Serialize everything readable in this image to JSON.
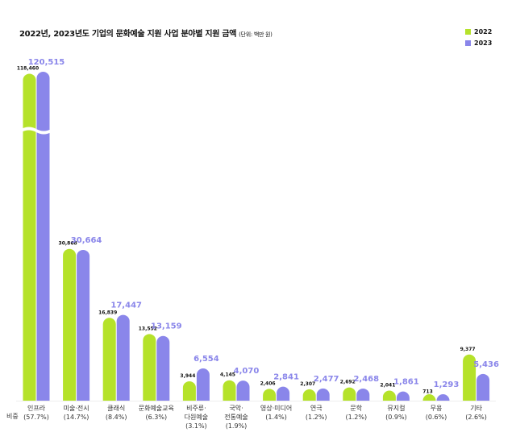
{
  "title": "2022년, 2023년도 기업의 문화예술 지원 사업 분야별 지원 금액",
  "unit_note": "(단위: 백만 원)",
  "share_label": "비중",
  "legend": [
    {
      "name": "2022",
      "color": "#b5e22a"
    },
    {
      "name": "2023",
      "color": "#8a86ea"
    }
  ],
  "chart_data": {
    "type": "bar",
    "title": "2022년, 2023년도 기업의 문화예술 지원 사업 분야별 지원 금액",
    "unit": "(단위: 백만 원)",
    "categories": [
      {
        "label": [
          "인프라"
        ],
        "share": "(57.7%)"
      },
      {
        "label": [
          "미술·전시"
        ],
        "share": "(14.7%)"
      },
      {
        "label": [
          "클래식"
        ],
        "share": "(8.4%)"
      },
      {
        "label": [
          "문화예술교육"
        ],
        "share": "(6.3%)"
      },
      {
        "label": [
          "비주류·",
          "다원예술"
        ],
        "share": "(3.1%)"
      },
      {
        "label": [
          "국악·",
          "전통예술"
        ],
        "share": "(1.9%)"
      },
      {
        "label": [
          "영상·미디어"
        ],
        "share": "(1.4%)"
      },
      {
        "label": [
          "연극"
        ],
        "share": "(1.2%)"
      },
      {
        "label": [
          "문학"
        ],
        "share": "(1.2%)"
      },
      {
        "label": [
          "뮤지컬"
        ],
        "share": "(0.9%)"
      },
      {
        "label": [
          "무용"
        ],
        "share": "(0.6%)"
      },
      {
        "label": [
          "기타"
        ],
        "share": "(2.6%)"
      }
    ],
    "series": [
      {
        "name": "2022",
        "color": "#b5e22a",
        "values": [
          118460,
          30868,
          16839,
          13552,
          3944,
          4145,
          2406,
          2307,
          2692,
          2041,
          713,
          9377
        ]
      },
      {
        "name": "2023",
        "color": "#8a86ea",
        "values": [
          120515,
          30664,
          17447,
          13159,
          6554,
          4070,
          2841,
          2477,
          2468,
          1861,
          1293,
          5436
        ]
      }
    ],
    "value_labels": {
      "2022": [
        "118,460",
        "30,868",
        "16,839",
        "13,552",
        "3,944",
        "4,145",
        "2,406",
        "2,307",
        "2,692",
        "2,041",
        "713",
        "9,377"
      ],
      "2023": [
        "120,515",
        "30,664",
        "17,447",
        "13,159",
        "6,554",
        "4,070",
        "2,841",
        "2,477",
        "2,468",
        "1,861",
        "1,293",
        "5,436"
      ]
    },
    "axis_break": true,
    "grid": false,
    "legend_position": "top-right"
  }
}
